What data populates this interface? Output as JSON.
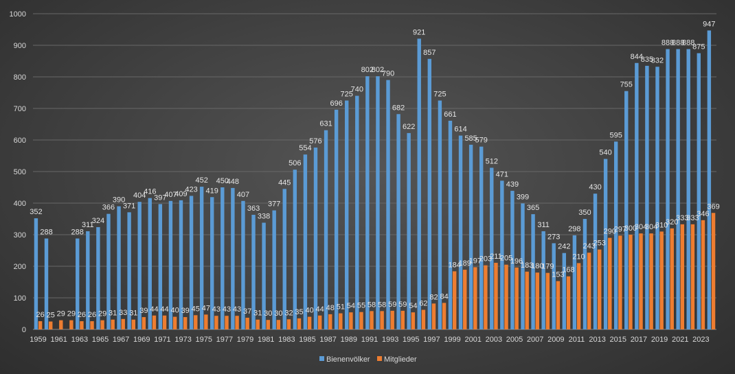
{
  "chart_data": {
    "type": "bar",
    "title": "",
    "xlabel": "",
    "ylabel": "",
    "ylim": [
      0,
      1000
    ],
    "yticks": [
      "0",
      "100",
      "200",
      "300",
      "400",
      "500",
      "600",
      "700",
      "800",
      "900",
      "1000"
    ],
    "grid": true,
    "legend_position": "bottom",
    "categories": [
      "1959",
      "1960",
      "1961",
      "1962",
      "1963",
      "1964",
      "1965",
      "1966",
      "1967",
      "1968",
      "1969",
      "1970",
      "1971",
      "1972",
      "1973",
      "1974",
      "1975",
      "1976",
      "1977",
      "1978",
      "1979",
      "1980",
      "1981",
      "1982",
      "1983",
      "1984",
      "1985",
      "1986",
      "1987",
      "1988",
      "1989",
      "1990",
      "1991",
      "1992",
      "1993",
      "1994",
      "1995",
      "1996",
      "1997",
      "1998",
      "1999",
      "2000",
      "2001",
      "2002",
      "2003",
      "2004",
      "2005",
      "2006",
      "2007",
      "2008",
      "2009",
      "2010",
      "2011",
      "2012",
      "2013",
      "2014",
      "2015",
      "2016",
      "2017",
      "2018",
      "2019",
      "2020",
      "2021",
      "2022",
      "2023",
      "2024"
    ],
    "xtick_labels_shown": [
      "1959",
      "1961",
      "1963",
      "1965",
      "1967",
      "1969",
      "1971",
      "1973",
      "1975",
      "1977",
      "1979",
      "1981",
      "1983",
      "1985",
      "1987",
      "1989",
      "1991",
      "1993",
      "1995",
      "1997",
      "1999",
      "2001",
      "2003",
      "2005",
      "2007",
      "2009",
      "2011",
      "2013",
      "2015",
      "2017",
      "2019",
      "2021",
      "2023"
    ],
    "series": [
      {
        "name": "Bienenvölker",
        "color": "#5b9bd5",
        "values": [
          352,
          288,
          null,
          null,
          288,
          311,
          324,
          366,
          390,
          371,
          404,
          416,
          397,
          407,
          409,
          423,
          452,
          419,
          450,
          448,
          407,
          363,
          338,
          377,
          445,
          506,
          554,
          576,
          631,
          696,
          725,
          740,
          802,
          802,
          790,
          682,
          622,
          921,
          857,
          725,
          661,
          614,
          585,
          579,
          512,
          471,
          439,
          399,
          365,
          311,
          273,
          242,
          298,
          350,
          430,
          540,
          595,
          755,
          844,
          835,
          832,
          888,
          888,
          888,
          875,
          947
        ],
        "labels": [
          "352",
          "288",
          "",
          "",
          "288",
          "311",
          "324",
          "366",
          "390",
          "371",
          "404",
          "416",
          "397",
          "407",
          "409",
          "423",
          "452",
          "419",
          "450",
          "448",
          "407",
          "363",
          "338",
          "377",
          "445",
          "506",
          "554",
          "576",
          "631",
          "696",
          "725",
          "740",
          "802",
          "802",
          "790",
          "682",
          "622",
          "921",
          "857",
          "725",
          "661",
          "614",
          "585",
          "579",
          "512",
          "471",
          "439",
          "399",
          "365",
          "311",
          "273",
          "242",
          "298",
          "350",
          "430",
          "540",
          "595",
          "755",
          "844",
          "835",
          "832",
          "888",
          "888",
          "888",
          "875",
          "947"
        ]
      },
      {
        "name": "Mitglieder",
        "color": "#ed7d31",
        "values": [
          26,
          25,
          29,
          29,
          26,
          26,
          29,
          31,
          33,
          31,
          39,
          44,
          44,
          40,
          39,
          45,
          47,
          43,
          43,
          43,
          37,
          31,
          30,
          30,
          32,
          35,
          40,
          44,
          48,
          51,
          54,
          55,
          58,
          58,
          59,
          59,
          54,
          62,
          82,
          84,
          184,
          189,
          197,
          203,
          211,
          205,
          196,
          183,
          180,
          179,
          153,
          168,
          210,
          243,
          253,
          290,
          297,
          300,
          304,
          304,
          310,
          320,
          333,
          333,
          346,
          369
        ],
        "labels": [
          "26",
          "25",
          "29",
          "29",
          "26",
          "26",
          "29",
          "31",
          "33",
          "31",
          "39",
          "44",
          "44",
          "40",
          "39",
          "45",
          "47",
          "43",
          "43",
          "43",
          "37",
          "31",
          "30",
          "30",
          "32",
          "35",
          "40",
          "44",
          "48",
          "51",
          "54",
          "55",
          "58",
          "58",
          "59",
          "59",
          "54",
          "62",
          "82",
          "84",
          "184",
          "189",
          "197",
          "203",
          "211",
          "205",
          "196",
          "183",
          "180",
          "179",
          "153",
          "168",
          "210",
          "243",
          "253",
          "290",
          "297",
          "300",
          "304",
          "304",
          "310",
          "320",
          "333",
          "333",
          "346",
          "369"
        ]
      }
    ]
  }
}
